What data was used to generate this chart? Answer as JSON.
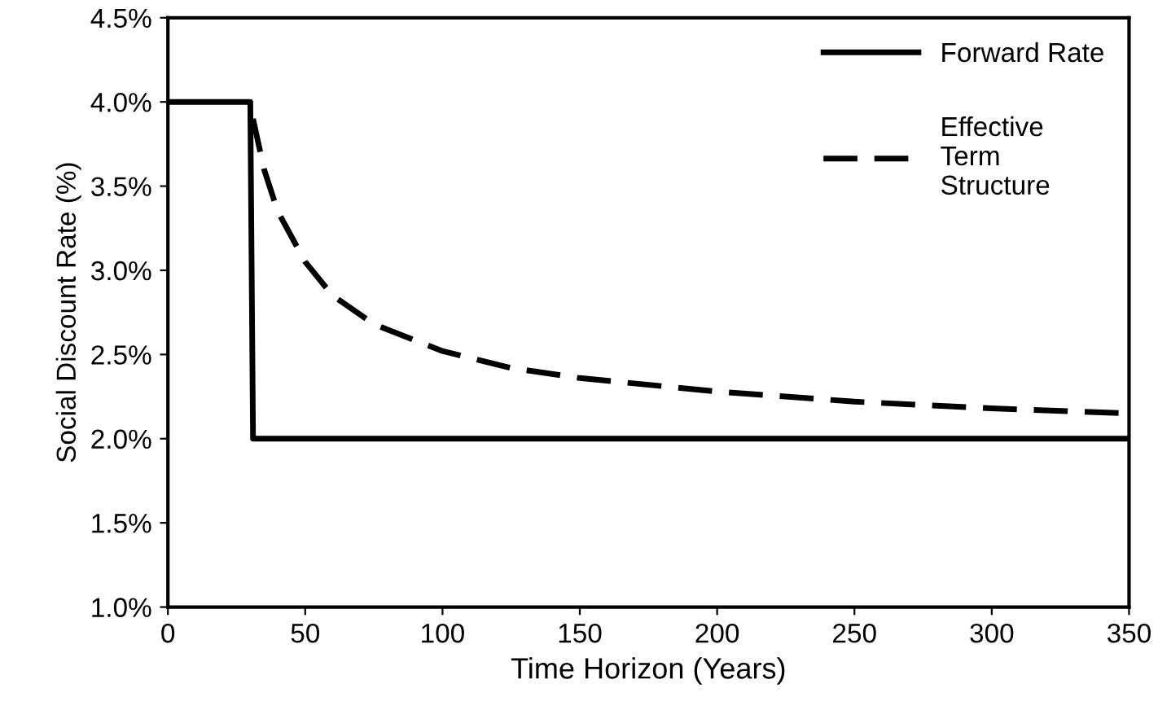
{
  "chart_data": {
    "type": "line",
    "xlabel": "Time Horizon (Years)",
    "ylabel": "Social Discount Rate (%)",
    "series": [
      {
        "name": "Forward Rate",
        "color": "#000000",
        "line_style": "solid",
        "x": [
          0,
          30,
          31,
          350
        ],
        "values": [
          4.0,
          4.0,
          2.0,
          2.0
        ]
      },
      {
        "name": "Effective\nTerm\nStructure",
        "color": "#000000",
        "line_style": "dashed",
        "x": [
          31,
          35,
          40,
          50,
          60,
          75,
          100,
          125,
          150,
          200,
          250,
          300,
          350
        ],
        "values": [
          3.9,
          3.6,
          3.35,
          3.05,
          2.85,
          2.68,
          2.52,
          2.42,
          2.36,
          2.28,
          2.22,
          2.18,
          2.15
        ]
      }
    ],
    "xlim": [
      0,
      350
    ],
    "xticks": [
      0,
      50,
      100,
      150,
      200,
      250,
      300,
      350
    ],
    "ylim": [
      1.0,
      4.5
    ],
    "yticks": [
      {
        "value": 1.0,
        "label": "1.0%"
      },
      {
        "value": 1.5,
        "label": "1.5%"
      },
      {
        "value": 2.0,
        "label": "2.0%"
      },
      {
        "value": 2.5,
        "label": "2.5%"
      },
      {
        "value": 3.0,
        "label": "3.0%"
      },
      {
        "value": 3.5,
        "label": "3.5%"
      },
      {
        "value": 4.0,
        "label": "4.0%"
      },
      {
        "value": 4.5,
        "label": "4.5%"
      }
    ],
    "grid": false,
    "legend": "top right",
    "marker": "none"
  }
}
